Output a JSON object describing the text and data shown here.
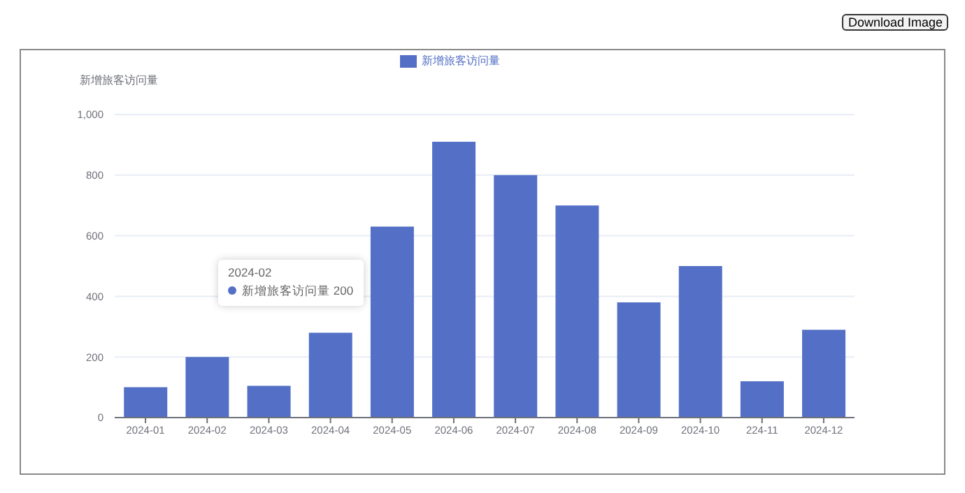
{
  "chart_data": {
    "type": "bar",
    "ylabel": "新增旅客访问量",
    "categories": [
      "2024-01",
      "2024-02",
      "2024-03",
      "2024-04",
      "2024-05",
      "2024-06",
      "2024-07",
      "2024-08",
      "2024-09",
      "2024-10",
      "224-11",
      "2024-12"
    ],
    "series": [
      {
        "name": "新增旅客访问量",
        "color": "#5470c6",
        "values": [
          100,
          200,
          105,
          280,
          630,
          910,
          800,
          700,
          380,
          500,
          120,
          290
        ]
      }
    ],
    "ylim": [
      0,
      1000
    ],
    "yticks": [
      0,
      200,
      400,
      600,
      800,
      {
        "value": 1000,
        "label": "1,000"
      }
    ],
    "grid": "y",
    "legend": "top",
    "annotations": [
      "Download Image",
      "2024-02",
      "新增旅客访问量 200"
    ]
  }
}
